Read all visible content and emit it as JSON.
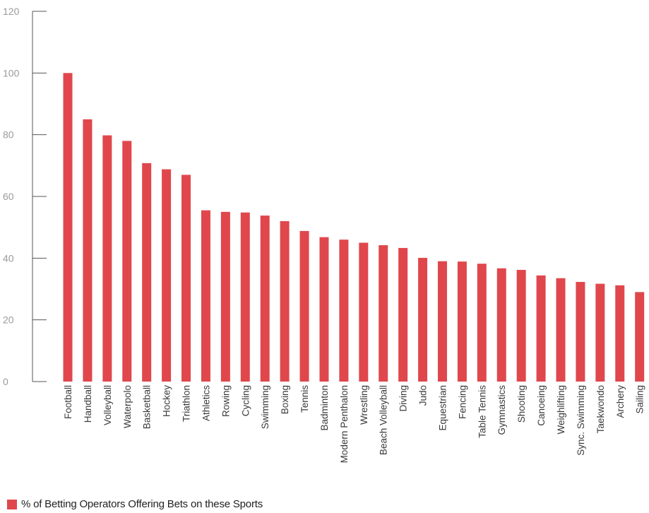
{
  "chart_data": {
    "type": "bar",
    "categories": [
      "Football",
      "Handball",
      "Volleyball",
      "Waterpolo",
      "Basketball",
      "Hockey",
      "Triathlon",
      "Athletics",
      "Rowing",
      "Cycling",
      "Swimming",
      "Boxing",
      "Tennis",
      "Badminton",
      "Modern Penthalon",
      "Wrestling",
      "Beach Volleyball",
      "Diving",
      "Judo",
      "Equestrian",
      "Fencing",
      "Table Tennis",
      "Gymnastics",
      "Shooting",
      "Canoeing",
      "Weighlifting",
      "Sync. Swimming",
      "Taekwondo",
      "Archery",
      "Sailing"
    ],
    "series": [
      {
        "name": "% of Betting Operators Offering Bets on these Sports",
        "values": [
          100,
          85,
          79.8,
          78,
          70.8,
          68.8,
          67,
          55.5,
          55,
          54.8,
          53.8,
          52,
          48.8,
          46.8,
          46,
          45,
          44.2,
          43.3,
          40.1,
          39,
          38.9,
          38.2,
          36.7,
          36.2,
          34.4,
          33.5,
          32.3,
          31.7,
          31.2,
          29
        ]
      }
    ],
    "yticks": [
      "0",
      "20",
      "40",
      "60",
      "80",
      "100",
      "120"
    ],
    "ylim": [
      0,
      120
    ],
    "grid": false,
    "legend_position": "bottom-left",
    "colors": {
      "bar": "#e0474c",
      "axis": "#555555",
      "tick_text": "#9a9a9a"
    }
  }
}
